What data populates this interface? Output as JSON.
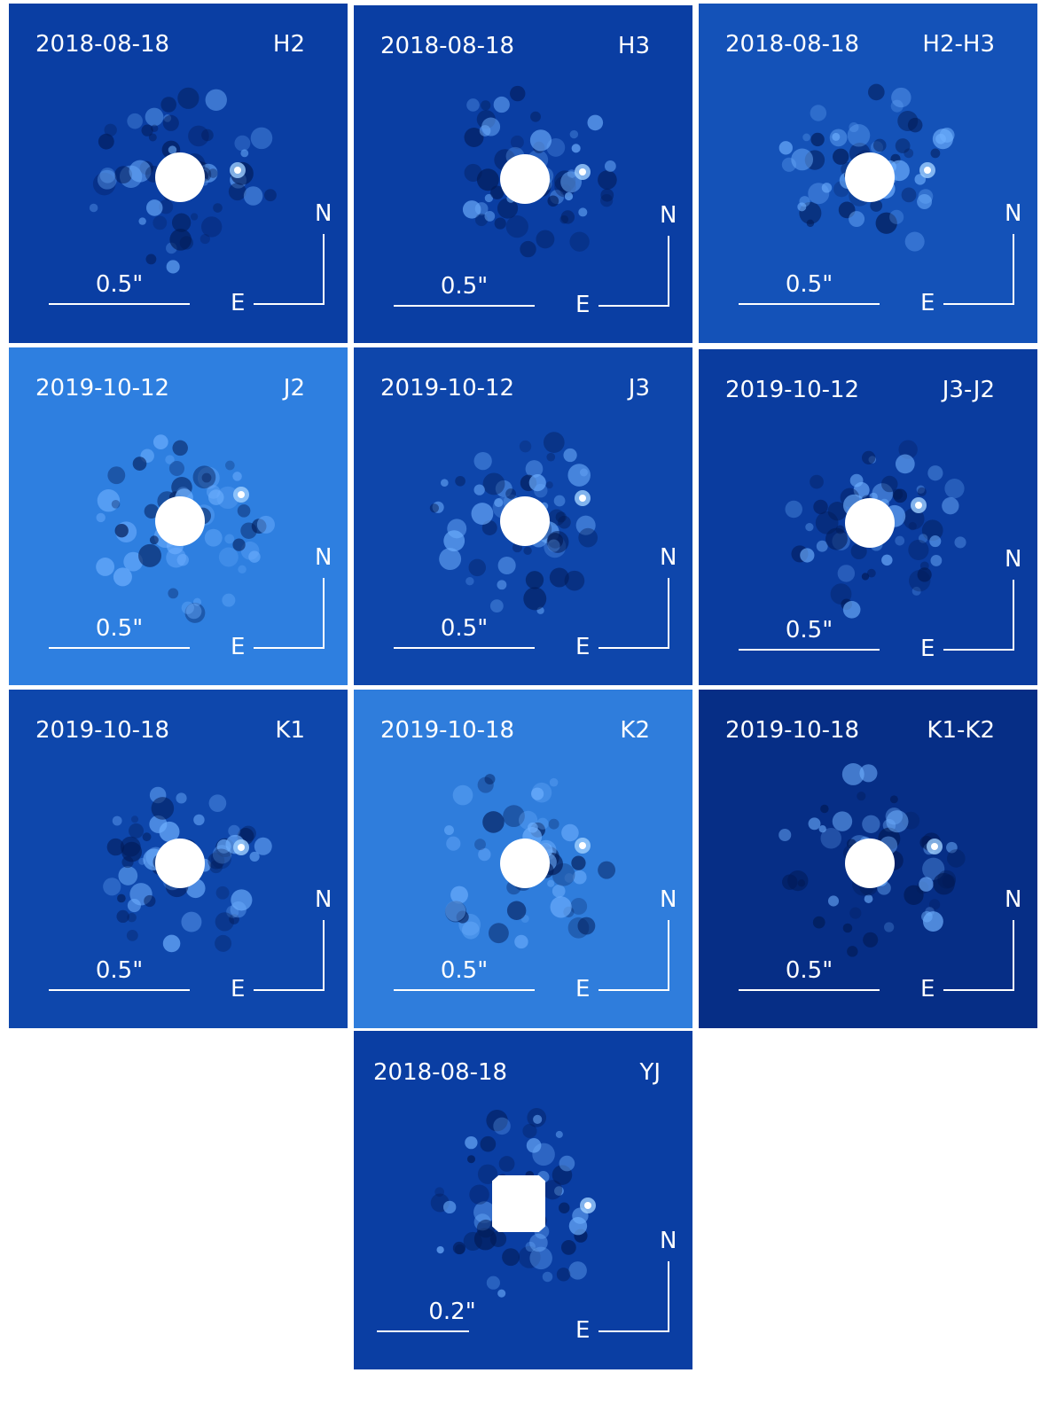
{
  "panels": [
    {
      "date": "2018-08-18",
      "band": "H2",
      "scale": "0.5\"",
      "north": "N",
      "east": "E",
      "bg": "#0a3ea3"
    },
    {
      "date": "2018-08-18",
      "band": "H3",
      "scale": "0.5\"",
      "north": "N",
      "east": "E",
      "bg": "#0a3ea3"
    },
    {
      "date": "2018-08-18",
      "band": "H2-H3",
      "scale": "0.5\"",
      "north": "N",
      "east": "E",
      "bg": "#1452b8"
    },
    {
      "date": "2019-10-12",
      "band": "J2",
      "scale": "0.5\"",
      "north": "N",
      "east": "E",
      "bg": "#2e7fe0"
    },
    {
      "date": "2019-10-12",
      "band": "J3",
      "scale": "0.5\"",
      "north": "N",
      "east": "E",
      "bg": "#0e46ab"
    },
    {
      "date": "2019-10-12",
      "band": "J3-J2",
      "scale": "0.5\"",
      "north": "N",
      "east": "E",
      "bg": "#0a3c9f"
    },
    {
      "date": "2019-10-18",
      "band": "K1",
      "scale": "0.5\"",
      "north": "N",
      "east": "E",
      "bg": "#0e47ac"
    },
    {
      "date": "2019-10-18",
      "band": "K2",
      "scale": "0.5\"",
      "north": "N",
      "east": "E",
      "bg": "#2f7ddc"
    },
    {
      "date": "2019-10-18",
      "band": "K1-K2",
      "scale": "0.5\"",
      "north": "N",
      "east": "E",
      "bg": "#062e86"
    },
    {
      "date": "2018-08-18",
      "band": "YJ",
      "scale": "0.2\"",
      "north": "N",
      "east": "E",
      "bg": "#0a3ea3"
    }
  ]
}
